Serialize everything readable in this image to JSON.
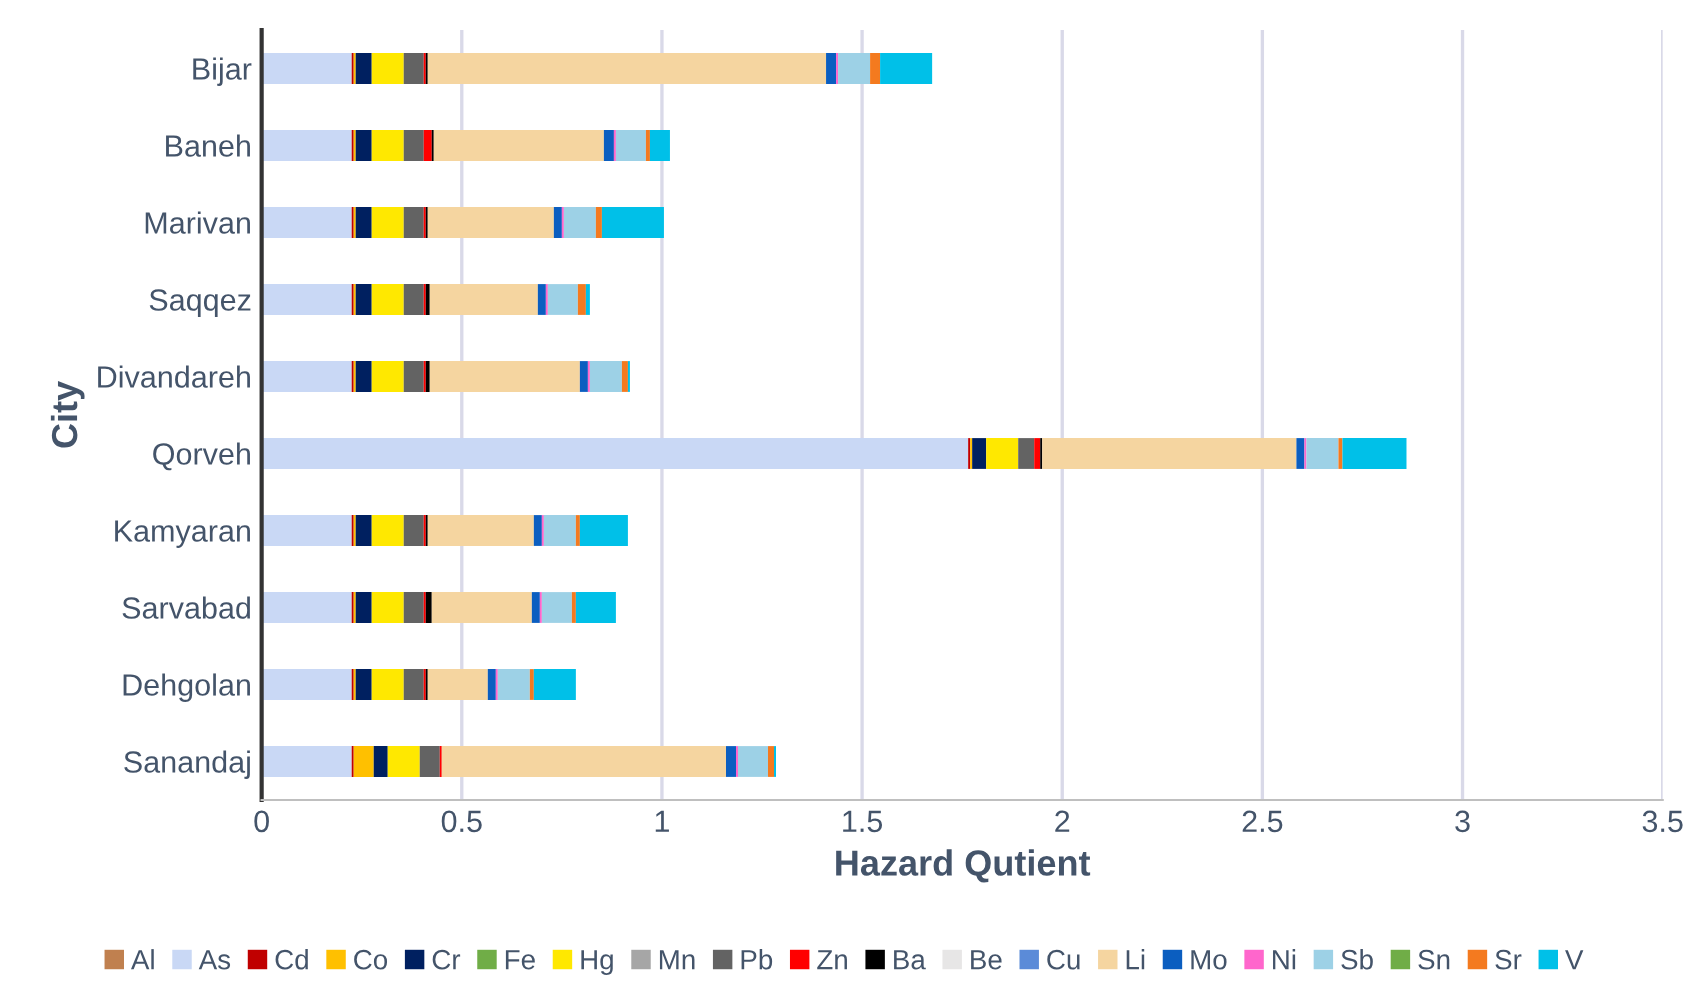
{
  "chart_data": {
    "type": "bar",
    "orientation": "horizontal",
    "stacked": true,
    "xlabel": "Hazard Qutient",
    "ylabel": "City",
    "categories": [
      "Bijar",
      "Baneh",
      "Marivan",
      "Saqqez",
      "Divandareh",
      "Qorveh",
      "Kamyaran",
      "Sarvabad",
      "Dehgolan",
      "Sanandaj"
    ],
    "xlim": [
      0,
      3.5
    ],
    "xticks": [
      0,
      0.5,
      1,
      1.5,
      2,
      2.5,
      3,
      3.5
    ],
    "grid": "x",
    "legend": "bottom",
    "series": [
      {
        "name": "Al",
        "color": "#c0804f",
        "values": [
          0,
          0,
          0,
          0,
          0,
          0,
          0,
          0,
          0,
          0
        ]
      },
      {
        "name": "As",
        "color": "#c9d8f5",
        "values": [
          0.225,
          0.225,
          0.225,
          0.225,
          0.225,
          1.765,
          0.225,
          0.225,
          0.225,
          0.225
        ]
      },
      {
        "name": "Cd",
        "color": "#c00000",
        "values": [
          0.005,
          0.005,
          0.005,
          0.005,
          0.005,
          0.005,
          0.005,
          0.005,
          0.005,
          0.005
        ]
      },
      {
        "name": "Co",
        "color": "#ffc000",
        "values": [
          0.005,
          0.005,
          0.005,
          0.005,
          0.005,
          0.005,
          0.005,
          0.005,
          0.005,
          0.05
        ]
      },
      {
        "name": "Cr",
        "color": "#002060",
        "values": [
          0.04,
          0.04,
          0.04,
          0.04,
          0.04,
          0.035,
          0.04,
          0.04,
          0.04,
          0.035
        ]
      },
      {
        "name": "Fe",
        "color": "#70ad47",
        "values": [
          0,
          0,
          0,
          0,
          0,
          0,
          0,
          0,
          0,
          0
        ]
      },
      {
        "name": "Hg",
        "color": "#ffe800",
        "values": [
          0.08,
          0.08,
          0.08,
          0.08,
          0.08,
          0.08,
          0.08,
          0.08,
          0.08,
          0.08
        ]
      },
      {
        "name": "Mn",
        "color": "#a6a6a6",
        "values": [
          0,
          0,
          0,
          0,
          0,
          0,
          0,
          0,
          0,
          0
        ]
      },
      {
        "name": "Pb",
        "color": "#636363",
        "values": [
          0.05,
          0.05,
          0.05,
          0.05,
          0.05,
          0.04,
          0.05,
          0.05,
          0.05,
          0.05
        ]
      },
      {
        "name": "Zn",
        "color": "#ff0000",
        "values": [
          0.005,
          0.02,
          0.005,
          0.005,
          0.005,
          0.015,
          0.005,
          0.005,
          0.005,
          0.005
        ]
      },
      {
        "name": "Ba",
        "color": "#000000",
        "values": [
          0.005,
          0.005,
          0.005,
          0.01,
          0.01,
          0.005,
          0.005,
          0.015,
          0.005,
          0
        ]
      },
      {
        "name": "Be",
        "color": "#e7e6e6",
        "values": [
          0,
          0,
          0,
          0,
          0,
          0,
          0,
          0,
          0,
          0
        ]
      },
      {
        "name": "Cu",
        "color": "#5b8bd8",
        "values": [
          0,
          0,
          0,
          0,
          0,
          0,
          0,
          0,
          0,
          0
        ]
      },
      {
        "name": "Li",
        "color": "#f5d5a0",
        "values": [
          0.995,
          0.425,
          0.315,
          0.27,
          0.375,
          0.635,
          0.265,
          0.25,
          0.15,
          0.71
        ]
      },
      {
        "name": "Mo",
        "color": "#0b5ec0",
        "values": [
          0.025,
          0.025,
          0.02,
          0.02,
          0.02,
          0.02,
          0.02,
          0.02,
          0.02,
          0.025
        ]
      },
      {
        "name": "Ni",
        "color": "#ff66cc",
        "values": [
          0.005,
          0.005,
          0.005,
          0.005,
          0.005,
          0.005,
          0.005,
          0.005,
          0.005,
          0.005
        ]
      },
      {
        "name": "Sb",
        "color": "#9dd1e6",
        "values": [
          0.08,
          0.075,
          0.08,
          0.075,
          0.08,
          0.08,
          0.08,
          0.075,
          0.08,
          0.075
        ]
      },
      {
        "name": "Sn",
        "color": "#70ad47",
        "values": [
          0,
          0,
          0,
          0,
          0,
          0,
          0,
          0,
          0,
          0
        ]
      },
      {
        "name": "Sr",
        "color": "#f47a1f",
        "values": [
          0.025,
          0.01,
          0.015,
          0.02,
          0.015,
          0.01,
          0.01,
          0.01,
          0.01,
          0.015
        ]
      },
      {
        "name": "V",
        "color": "#00c0e8",
        "values": [
          0.13,
          0.05,
          0.155,
          0.01,
          0.005,
          0.16,
          0.12,
          0.1,
          0.105,
          0.005
        ]
      }
    ]
  }
}
